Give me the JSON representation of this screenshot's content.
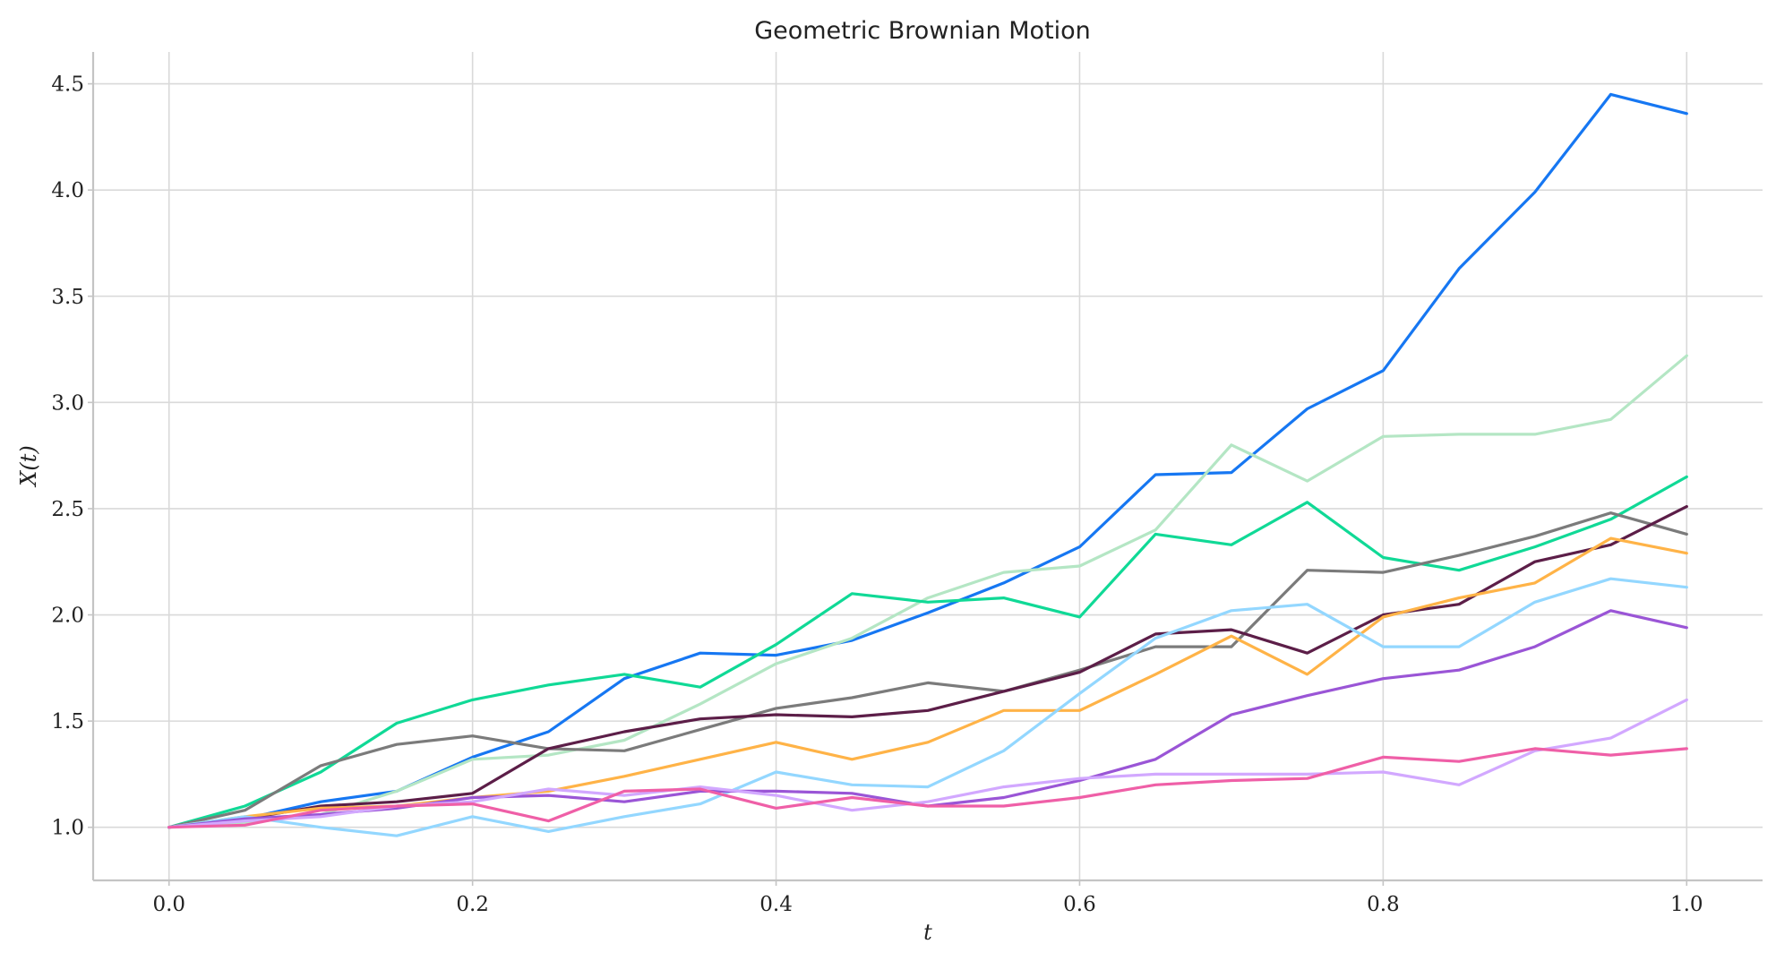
{
  "chart_data": {
    "type": "line",
    "title": "Geometric Brownian Motion",
    "xlabel": "t",
    "ylabel": "X(t)",
    "xlim": [
      -0.05,
      1.05
    ],
    "ylim": [
      0.75,
      4.65
    ],
    "xticks": [
      0.0,
      0.2,
      0.4,
      0.6,
      0.8,
      1.0
    ],
    "xtick_labels": [
      "0.0",
      "0.2",
      "0.4",
      "0.6",
      "0.8",
      "1.0"
    ],
    "yticks": [
      1.0,
      1.5,
      2.0,
      2.5,
      3.0,
      3.5,
      4.0,
      4.5
    ],
    "ytick_labels": [
      "1.0",
      "1.5",
      "2.0",
      "2.5",
      "3.0",
      "3.5",
      "4.0",
      "4.5"
    ],
    "grid": true,
    "legend": false,
    "x": [
      0.0,
      0.05,
      0.1,
      0.15,
      0.2,
      0.25,
      0.3,
      0.35,
      0.4,
      0.45,
      0.5,
      0.55,
      0.6,
      0.65,
      0.7,
      0.75,
      0.8,
      0.85,
      0.9,
      0.95,
      1.0
    ],
    "series": [
      {
        "color": "#1677f2",
        "values": [
          1.0,
          1.04,
          1.12,
          1.17,
          1.33,
          1.45,
          1.7,
          1.82,
          1.81,
          1.88,
          2.01,
          2.15,
          2.32,
          2.66,
          2.67,
          2.97,
          3.15,
          3.63,
          3.99,
          4.45,
          4.36
        ]
      },
      {
        "color": "#b4e6c4",
        "values": [
          1.0,
          1.02,
          1.06,
          1.17,
          1.32,
          1.34,
          1.41,
          1.58,
          1.77,
          1.89,
          2.08,
          2.2,
          2.23,
          2.4,
          2.8,
          2.63,
          2.84,
          2.85,
          2.85,
          2.92,
          3.22
        ]
      },
      {
        "color": "#10d996",
        "values": [
          1.0,
          1.1,
          1.26,
          1.49,
          1.6,
          1.67,
          1.72,
          1.66,
          1.86,
          2.1,
          2.06,
          2.08,
          1.99,
          2.38,
          2.33,
          2.53,
          2.27,
          2.21,
          2.32,
          2.45,
          2.65
        ]
      },
      {
        "color": "#7b7b7b",
        "values": [
          1.0,
          1.08,
          1.29,
          1.39,
          1.43,
          1.37,
          1.36,
          1.46,
          1.56,
          1.61,
          1.68,
          1.64,
          1.74,
          1.85,
          1.85,
          2.21,
          2.2,
          2.28,
          2.37,
          2.48,
          2.38
        ]
      },
      {
        "color": "#5c1e48",
        "values": [
          1.0,
          1.04,
          1.1,
          1.12,
          1.16,
          1.37,
          1.45,
          1.51,
          1.53,
          1.52,
          1.55,
          1.64,
          1.73,
          1.91,
          1.93,
          1.82,
          2.0,
          2.05,
          2.25,
          2.33,
          2.51
        ]
      },
      {
        "color": "#ffb347",
        "values": [
          1.0,
          1.05,
          1.09,
          1.1,
          1.14,
          1.17,
          1.24,
          1.32,
          1.4,
          1.32,
          1.4,
          1.55,
          1.55,
          1.72,
          1.9,
          1.72,
          1.99,
          2.08,
          2.15,
          2.36,
          2.29
        ]
      },
      {
        "color": "#93d7ff",
        "values": [
          1.0,
          1.05,
          1.0,
          0.96,
          1.05,
          0.98,
          1.05,
          1.11,
          1.26,
          1.2,
          1.19,
          1.36,
          1.63,
          1.89,
          2.02,
          2.05,
          1.85,
          1.85,
          2.06,
          2.17,
          2.13
        ]
      },
      {
        "color": "#9a55d6",
        "values": [
          1.0,
          1.04,
          1.06,
          1.09,
          1.14,
          1.15,
          1.12,
          1.17,
          1.17,
          1.16,
          1.1,
          1.14,
          1.22,
          1.32,
          1.53,
          1.62,
          1.7,
          1.74,
          1.85,
          2.02,
          1.94
        ]
      },
      {
        "color": "#d2a8ff",
        "values": [
          1.0,
          1.03,
          1.05,
          1.1,
          1.12,
          1.18,
          1.15,
          1.19,
          1.15,
          1.08,
          1.12,
          1.19,
          1.23,
          1.25,
          1.25,
          1.25,
          1.26,
          1.2,
          1.36,
          1.42,
          1.6
        ]
      },
      {
        "color": "#ef5fa7",
        "values": [
          1.0,
          1.01,
          1.08,
          1.1,
          1.11,
          1.03,
          1.17,
          1.18,
          1.09,
          1.14,
          1.1,
          1.1,
          1.14,
          1.2,
          1.22,
          1.23,
          1.33,
          1.31,
          1.37,
          1.34,
          1.37
        ]
      }
    ]
  }
}
